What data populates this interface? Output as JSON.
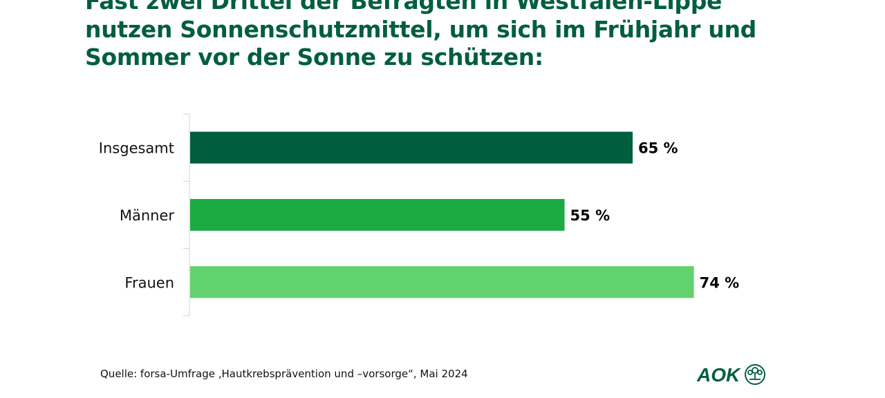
{
  "title": "Fast zwei Drittel der Befragten in Westfalen-Lippe nutzen Sonnenschutzmittel, um sich im Frühjahr und Sommer vor der Sonne zu schützen:",
  "source": "Quelle: forsa-Umfrage ‚Hautkrebsprävention und –vorsorge“, Mai 2024",
  "logo": {
    "text": "AOK"
  },
  "chart_data": {
    "type": "bar",
    "orientation": "horizontal",
    "categories": [
      "Insgesamt",
      "Männer",
      "Frauen"
    ],
    "values": [
      65,
      55,
      74
    ],
    "value_labels": [
      "65 %",
      "55 %",
      "74 %"
    ],
    "colors": [
      "#005e3f",
      "#1aab42",
      "#62d26f"
    ],
    "xlim": [
      0,
      100
    ],
    "grid": false,
    "unit": "%"
  }
}
